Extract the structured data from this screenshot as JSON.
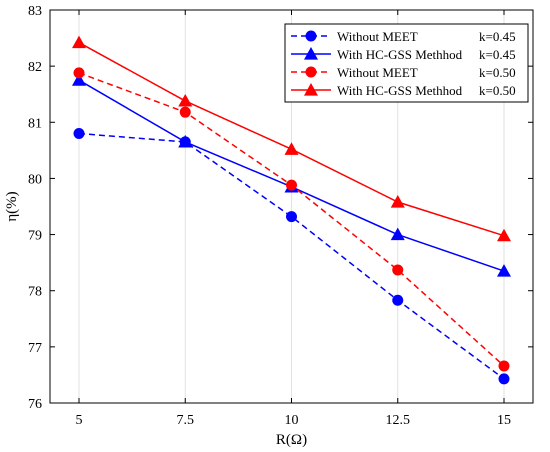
{
  "chart_data": {
    "type": "line",
    "xlabel": "R(Ω)",
    "ylabel": "η(%)",
    "x": [
      5,
      7.5,
      10,
      12.5,
      15
    ],
    "x_tick_labels": [
      "5",
      "7.5",
      "10",
      "12.5",
      "15"
    ],
    "ylim": [
      76,
      83
    ],
    "y_ticks": [
      76,
      77,
      78,
      79,
      80,
      81,
      82,
      83
    ],
    "y_tick_labels": [
      "76",
      "77",
      "78",
      "79",
      "80",
      "81",
      "82",
      "83"
    ],
    "grid": "vertical",
    "legend_position": "top-right",
    "series": [
      {
        "name": "Without MEET",
        "k_label": "k=0.45",
        "values": [
          80.8,
          80.65,
          79.32,
          77.83,
          76.43
        ],
        "color": "#0000ff",
        "line_style": "dashed",
        "marker": "circle"
      },
      {
        "name": "With HC-GSS Methhod",
        "k_label": "k=0.45",
        "values": [
          81.75,
          80.65,
          79.85,
          79.0,
          78.35
        ],
        "color": "#0000ff",
        "line_style": "solid",
        "marker": "triangle"
      },
      {
        "name": "Without MEET",
        "k_label": "k=0.50",
        "values": [
          81.88,
          81.18,
          79.88,
          78.37,
          76.66
        ],
        "color": "#ff0000",
        "line_style": "dashed",
        "marker": "circle"
      },
      {
        "name": "With HC-GSS Methhod",
        "k_label": "k=0.50",
        "values": [
          82.42,
          81.38,
          80.52,
          79.58,
          78.98
        ],
        "color": "#ff0000",
        "line_style": "solid",
        "marker": "triangle"
      }
    ]
  }
}
